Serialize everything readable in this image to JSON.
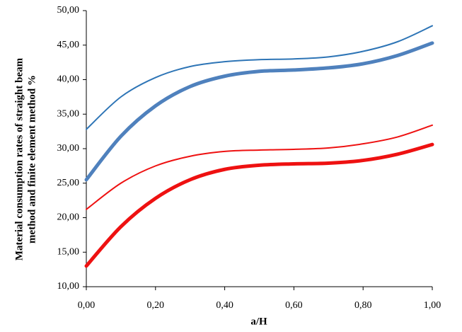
{
  "chart_data": {
    "type": "line",
    "xlabel": "a/H",
    "ylabel": [
      "Material consumption rates of straight beam",
      "method and finite element method  %"
    ],
    "x": [
      0,
      0.1,
      0.2,
      0.3,
      0.4,
      0.5,
      0.6,
      0.7,
      0.8,
      0.9,
      1.0
    ],
    "series": [
      {
        "color": "#2e75b6",
        "width": 2,
        "values": [
          32.8,
          37.5,
          40.3,
          41.9,
          42.6,
          42.9,
          43.0,
          43.3,
          44.1,
          45.5,
          47.8
        ]
      },
      {
        "color": "#4f81bd",
        "width": 5,
        "values": [
          25.5,
          31.8,
          36.2,
          39.0,
          40.5,
          41.2,
          41.4,
          41.7,
          42.3,
          43.5,
          45.3
        ]
      },
      {
        "color": "#ee1111",
        "width": 2,
        "values": [
          21.2,
          25.0,
          27.5,
          28.9,
          29.6,
          29.8,
          29.9,
          30.1,
          30.7,
          31.7,
          33.4
        ]
      },
      {
        "color": "#ee1111",
        "width": 5,
        "values": [
          13.0,
          18.7,
          22.8,
          25.5,
          27.0,
          27.6,
          27.8,
          27.9,
          28.3,
          29.2,
          30.6
        ]
      }
    ],
    "xlim": [
      0,
      1
    ],
    "xticks": [
      {
        "value": 0,
        "label": "0,00"
      },
      {
        "value": 0.2,
        "label": "0,20"
      },
      {
        "value": 0.4,
        "label": "0,40"
      },
      {
        "value": 0.6,
        "label": "0,60"
      },
      {
        "value": 0.8,
        "label": "0,80"
      },
      {
        "value": 1,
        "label": "1,00"
      }
    ],
    "ylim": [
      10,
      50
    ],
    "yticks": [
      {
        "value": 10,
        "label": "10,00"
      },
      {
        "value": 15,
        "label": "15,00"
      },
      {
        "value": 20,
        "label": "20,00"
      },
      {
        "value": 25,
        "label": "25,00"
      },
      {
        "value": 30,
        "label": "30,00"
      },
      {
        "value": 35,
        "label": "35,00"
      },
      {
        "value": 40,
        "label": "40,00"
      },
      {
        "value": 45,
        "label": "45,00"
      },
      {
        "value": 50,
        "label": "50,00"
      }
    ],
    "grid": false
  }
}
